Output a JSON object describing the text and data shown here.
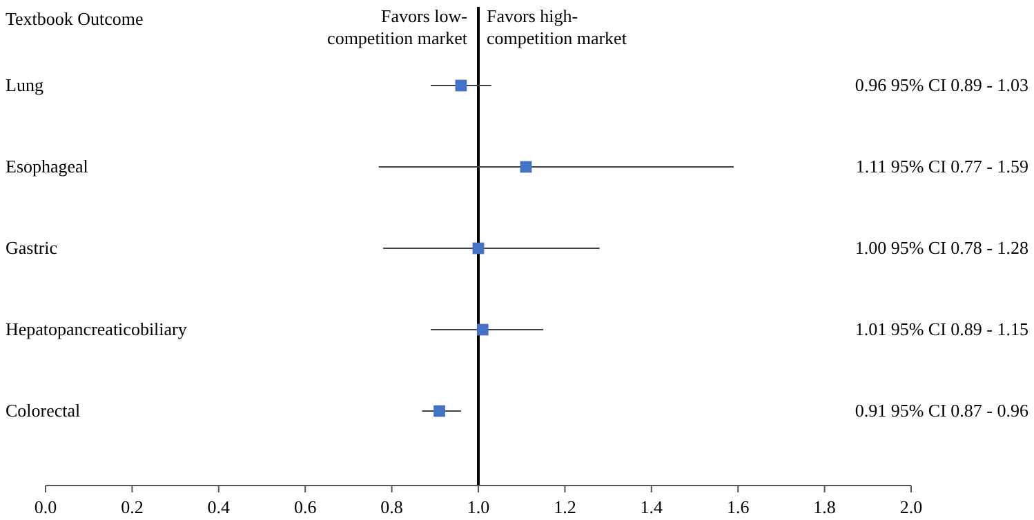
{
  "chart_data": {
    "type": "scatter",
    "orientation": "horizontal",
    "ylabel": "Textbook Outcome",
    "categories": [
      "Lung",
      "Esophageal",
      "Gastric",
      "Hepatopancreaticobiliary",
      "Colorectal"
    ],
    "values": [
      0.96,
      1.11,
      1.0,
      1.01,
      0.91
    ],
    "errors": [
      [
        0.89,
        1.03
      ],
      [
        0.77,
        1.59
      ],
      [
        0.78,
        1.28
      ],
      [
        0.89,
        1.15
      ],
      [
        0.87,
        0.96
      ]
    ],
    "value_labels": [
      "0.96 95% CI 0.89 - 1.03",
      "1.11 95% CI 0.77 - 1.59",
      "1.00 95% CI 0.78 - 1.28",
      "1.01 95% CI 0.89 - 1.15",
      "0.91 95% CI 0.87 - 0.96"
    ],
    "color": "#4472c4",
    "marker": "square",
    "xlim": [
      0,
      2
    ],
    "xticks": [
      {
        "value": 0,
        "label": "0.0"
      },
      {
        "value": 0.2,
        "label": "0.2"
      },
      {
        "value": 0.4,
        "label": "0.4"
      },
      {
        "value": 0.6,
        "label": "0.6"
      },
      {
        "value": 0.8,
        "label": "0.8"
      },
      {
        "value": 1,
        "label": "1.0"
      },
      {
        "value": 1.2,
        "label": "1.2"
      },
      {
        "value": 1.4,
        "label": "1.4"
      },
      {
        "value": 1.6,
        "label": "1.6"
      },
      {
        "value": 1.8,
        "label": "1.8"
      },
      {
        "value": 2,
        "label": "2.0"
      }
    ],
    "ref_lines": [
      {
        "axis": "x",
        "value": 1,
        "color": "#000000"
      }
    ],
    "annotations": [
      "Favors low-competition market",
      "Favors high-competition market"
    ],
    "grid": false,
    "legend": false
  }
}
